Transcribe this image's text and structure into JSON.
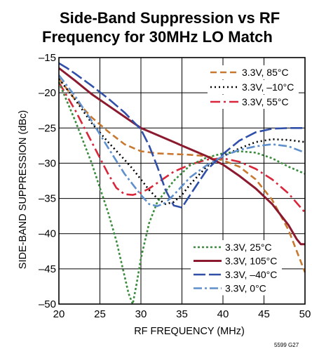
{
  "figure_id": "5599 G27",
  "chart_data": {
    "type": "line",
    "title_lines": [
      "Side-Band Suppression vs RF",
      "Frequency for 30MHz LO Match"
    ],
    "xlabel": "RF FREQUENCY (MHz)",
    "ylabel": "SIDE-BAND SUPPRESSION (dBc)",
    "xlim": [
      20,
      50
    ],
    "ylim": [
      -50,
      -15
    ],
    "xticks": [
      20,
      25,
      30,
      35,
      40,
      45,
      50
    ],
    "yticks": [
      -15,
      -20,
      -25,
      -30,
      -35,
      -40,
      -45,
      -50
    ],
    "ytick_labels": [
      "–15",
      "–20",
      "–25",
      "–30",
      "–35",
      "–40",
      "–45",
      "–50"
    ],
    "grid": true,
    "legend_top": [
      "3.3V, 85°C",
      "3.3V, –10°C",
      "3.3V, 55°C"
    ],
    "legend_bottom": [
      "3.3V, 25°C",
      "3.3V, 105°C",
      "3.3V, –40°C",
      "3.3V, 0°C"
    ],
    "series": [
      {
        "name": "3.3V, 85°C",
        "color": "#c8782f",
        "dash": "9,5",
        "width": 2.6,
        "x": [
          20,
          22,
          24,
          26,
          28,
          30,
          32,
          34,
          36,
          38,
          40,
          42,
          44,
          46,
          48,
          50
        ],
        "y": [
          -18,
          -21,
          -23.5,
          -25.5,
          -27.3,
          -28.3,
          -28.6,
          -28.7,
          -28.8,
          -29,
          -29.6,
          -30.5,
          -32.3,
          -35.2,
          -39.5,
          -45.5
        ]
      },
      {
        "name": "3.3V, –10°C",
        "color": "#000000",
        "dash": "2,4",
        "width": 2.6,
        "x": [
          20,
          22,
          24,
          26,
          28,
          29,
          30,
          31,
          32,
          33,
          34,
          35,
          36,
          38,
          40,
          42,
          44,
          46,
          48,
          50
        ],
        "y": [
          -18,
          -21,
          -24.3,
          -27,
          -29.5,
          -30.8,
          -32.3,
          -33.8,
          -35,
          -35.8,
          -35.5,
          -34.5,
          -33,
          -30.5,
          -29,
          -27.9,
          -27,
          -26.6,
          -26.7,
          -27
        ]
      },
      {
        "name": "3.3V, 55°C",
        "color": "#d9263a",
        "dash": "14,5,3,5",
        "width": 2.6,
        "x": [
          20,
          22,
          24,
          26,
          27,
          28,
          29,
          30,
          31,
          32,
          34,
          36,
          38,
          40,
          42,
          44,
          46,
          48,
          50
        ],
        "y": [
          -18.5,
          -22.5,
          -27,
          -31.5,
          -33.5,
          -34.4,
          -34.5,
          -34.2,
          -33.6,
          -32.8,
          -31.2,
          -30.2,
          -29.5,
          -29.3,
          -29.8,
          -30.8,
          -32.3,
          -34.3,
          -37
        ]
      },
      {
        "name": "3.3V, 25°C",
        "color": "#3a8c3c",
        "dash": "3,3",
        "width": 2.6,
        "x": [
          20,
          22,
          24,
          25,
          26,
          27,
          28,
          28.5,
          29,
          29.5,
          30,
          31,
          32,
          34,
          36,
          38,
          40,
          42,
          44,
          46,
          48,
          50
        ],
        "y": [
          -18.5,
          -24,
          -30,
          -33.5,
          -37,
          -41,
          -46,
          -48.5,
          -50,
          -47,
          -43.5,
          -38.5,
          -35.5,
          -32.5,
          -30.3,
          -29.2,
          -28.6,
          -28.3,
          -28.5,
          -29.3,
          -30.5,
          -31.5
        ]
      },
      {
        "name": "3.3V, 105°C",
        "color": "#8b1a2e",
        "dash": "",
        "width": 3,
        "x": [
          20,
          22,
          24,
          26,
          28,
          30,
          32,
          34,
          36,
          38,
          40,
          42,
          44,
          46,
          48,
          49,
          49.5,
          50
        ],
        "y": [
          -16.5,
          -18.3,
          -20.2,
          -21.8,
          -23.4,
          -25,
          -26,
          -27,
          -28,
          -29,
          -30.2,
          -31.8,
          -33.6,
          -35.8,
          -38.8,
          -40.8,
          -41.5,
          -41.5
        ]
      },
      {
        "name": "3.3V, –40°C",
        "color": "#2f4fa8",
        "dash": "17,5",
        "width": 2.6,
        "x": [
          20,
          21,
          22,
          24,
          26,
          28,
          30,
          31,
          32,
          33,
          34,
          35,
          36,
          38,
          40,
          42,
          44,
          46,
          48,
          50
        ],
        "y": [
          -15.8,
          -16.5,
          -17.3,
          -19,
          -20.8,
          -22.8,
          -25.2,
          -27.5,
          -30.5,
          -33.8,
          -36,
          -36.3,
          -34.5,
          -31,
          -28.7,
          -26.8,
          -25.6,
          -25.1,
          -25,
          -25
        ]
      },
      {
        "name": "3.3V, 0°C",
        "color": "#5f8fcc",
        "dash": "12,4,3,4",
        "width": 2.6,
        "x": [
          20,
          22,
          24,
          26,
          28,
          30,
          31,
          32,
          33,
          34,
          36,
          38,
          40,
          42,
          44,
          46,
          48,
          50
        ],
        "y": [
          -17.5,
          -20.5,
          -24,
          -27.8,
          -31.5,
          -34.5,
          -35.8,
          -36.1,
          -35.6,
          -34.5,
          -32,
          -30.3,
          -29,
          -28.1,
          -27.6,
          -27.3,
          -27.6,
          -28.5
        ]
      }
    ]
  }
}
